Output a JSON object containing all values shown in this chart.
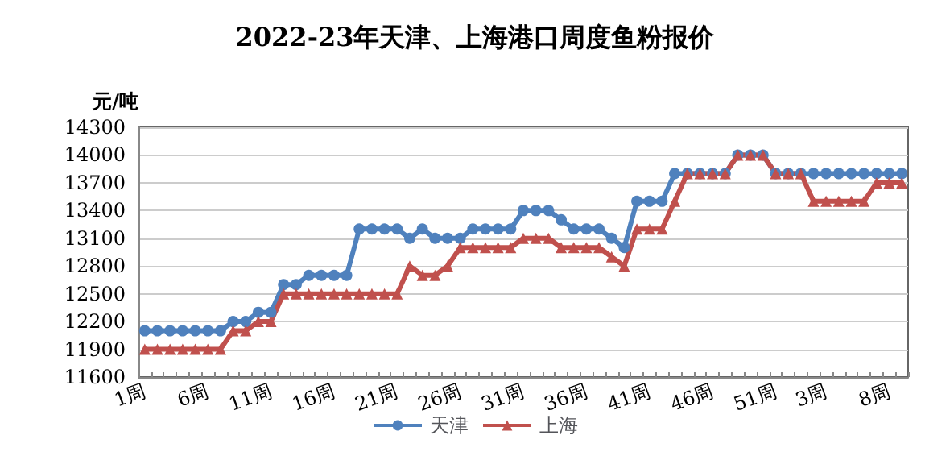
{
  "chart_data": {
    "type": "line",
    "title": "2022-23年天津、上海港口周度鱼粉报价",
    "ylabel": "元/吨",
    "categories": [
      "1周",
      null,
      null,
      null,
      null,
      "6周",
      null,
      null,
      null,
      null,
      "11周",
      null,
      null,
      null,
      null,
      "16周",
      null,
      null,
      null,
      null,
      "21周",
      null,
      null,
      null,
      null,
      "26周",
      null,
      null,
      null,
      null,
      "31周",
      null,
      null,
      null,
      null,
      "36周",
      null,
      null,
      null,
      null,
      "41周",
      null,
      null,
      null,
      null,
      "46周",
      null,
      null,
      null,
      null,
      "51周",
      null,
      null,
      null,
      "3周",
      null,
      null,
      null,
      null,
      "8周",
      null
    ],
    "series": [
      {
        "name": "天津",
        "color": "#4f81bd",
        "marker": "circle",
        "values": [
          12100,
          12100,
          12100,
          12100,
          12100,
          12100,
          12100,
          12200,
          12200,
          12300,
          12300,
          12600,
          12600,
          12700,
          12700,
          12700,
          12700,
          13200,
          13200,
          13200,
          13200,
          13100,
          13200,
          13100,
          13100,
          13100,
          13200,
          13200,
          13200,
          13200,
          13400,
          13400,
          13400,
          13300,
          13200,
          13200,
          13200,
          13100,
          13000,
          13500,
          13500,
          13500,
          13800,
          13800,
          13800,
          13800,
          13800,
          14000,
          14000,
          14000,
          13800,
          13800,
          13800,
          13800,
          13800,
          13800,
          13800,
          13800,
          13800,
          13800,
          13800
        ]
      },
      {
        "name": "上海",
        "color": "#c0504d",
        "marker": "triangle",
        "values": [
          11900,
          11900,
          11900,
          11900,
          11900,
          11900,
          11900,
          12100,
          12100,
          12200,
          12200,
          12500,
          12500,
          12500,
          12500,
          12500,
          12500,
          12500,
          12500,
          12500,
          12500,
          12800,
          12700,
          12700,
          12800,
          13000,
          13000,
          13000,
          13000,
          13000,
          13100,
          13100,
          13100,
          13000,
          13000,
          13000,
          13000,
          12900,
          12800,
          13200,
          13200,
          13200,
          13500,
          13800,
          13800,
          13800,
          13800,
          14000,
          14000,
          14000,
          13800,
          13800,
          13800,
          13500,
          13500,
          13500,
          13500,
          13500,
          13700,
          13700,
          13700
        ]
      }
    ],
    "ylim": [
      11600,
      14300
    ],
    "yticks": [
      11600,
      11900,
      12200,
      12500,
      12800,
      13100,
      13400,
      13700,
      14000,
      14300
    ],
    "grid": "y",
    "legend": "bottom",
    "line_style": "solid"
  }
}
